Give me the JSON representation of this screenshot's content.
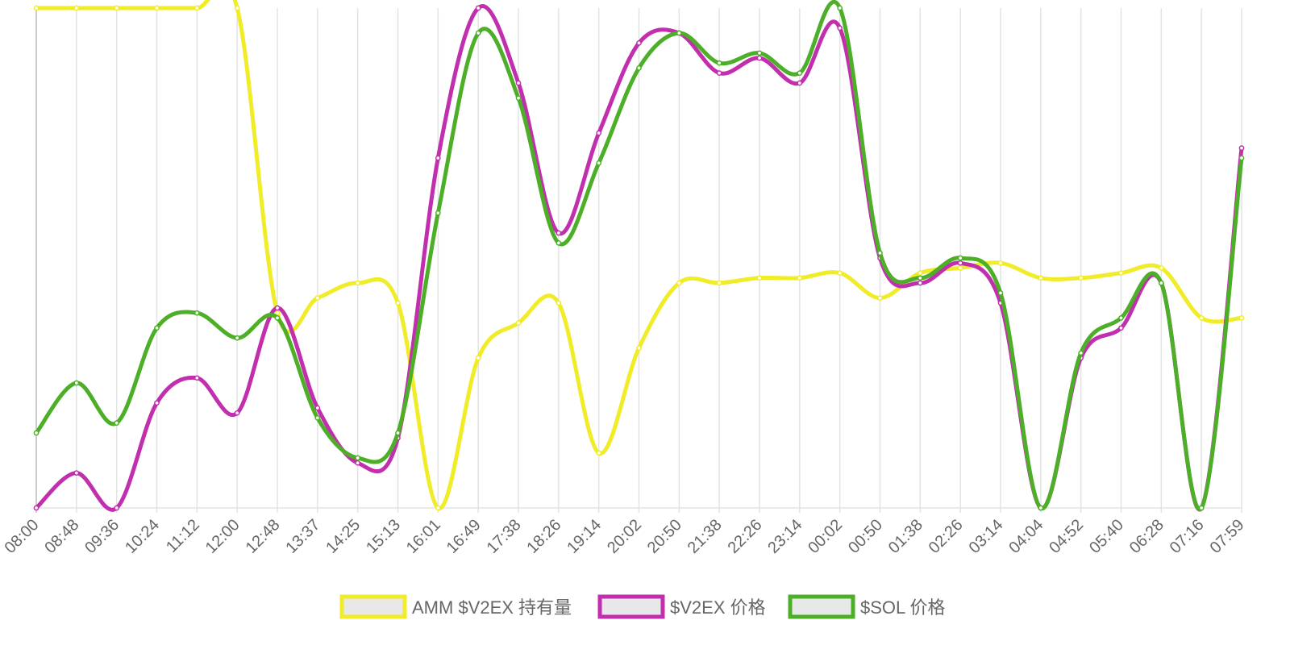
{
  "chart_data": {
    "type": "line",
    "title": "",
    "xlabel": "",
    "ylabel": "",
    "categories": [
      "08:00",
      "08:48",
      "09:36",
      "10:24",
      "11:12",
      "12:00",
      "12:48",
      "13:37",
      "14:25",
      "15:13",
      "16:01",
      "16:49",
      "17:38",
      "18:26",
      "19:14",
      "20:02",
      "20:50",
      "21:38",
      "22:26",
      "23:14",
      "00:02",
      "00:50",
      "01:38",
      "02:26",
      "03:14",
      "04:04",
      "04:52",
      "05:40",
      "06:28",
      "07:16",
      "07:59"
    ],
    "grid": true,
    "y_axis_labels": "hidden",
    "series": [
      {
        "name": "AMM $V2EX 持有量",
        "color": "#f0ec28",
        "values": [
          1.0,
          1.0,
          1.0,
          1.0,
          1.0,
          1.0,
          0.39,
          0.42,
          0.45,
          0.41,
          0.0,
          0.3,
          0.37,
          0.41,
          0.11,
          0.32,
          0.45,
          0.45,
          0.46,
          0.46,
          0.47,
          0.42,
          0.47,
          0.48,
          0.49,
          0.46,
          0.46,
          0.47,
          0.48,
          0.38,
          0.38
        ]
      },
      {
        "name": "$V2EX 价格",
        "color": "#c22fae",
        "values": [
          0.0,
          0.07,
          0.0,
          0.21,
          0.26,
          0.19,
          0.4,
          0.2,
          0.09,
          0.14,
          0.7,
          1.0,
          0.85,
          0.55,
          0.75,
          0.93,
          0.95,
          0.87,
          0.9,
          0.85,
          0.96,
          0.5,
          0.45,
          0.49,
          0.41,
          0.0,
          0.3,
          0.36,
          0.45,
          0.0,
          0.72
        ]
      },
      {
        "name": "$SOL 价格",
        "color": "#4caf27",
        "values": [
          0.15,
          0.25,
          0.17,
          0.36,
          0.39,
          0.34,
          0.38,
          0.18,
          0.1,
          0.15,
          0.59,
          0.95,
          0.82,
          0.53,
          0.69,
          0.88,
          0.95,
          0.89,
          0.91,
          0.87,
          1.0,
          0.51,
          0.46,
          0.5,
          0.43,
          0.0,
          0.31,
          0.38,
          0.45,
          0.0,
          0.7
        ]
      }
    ]
  }
}
